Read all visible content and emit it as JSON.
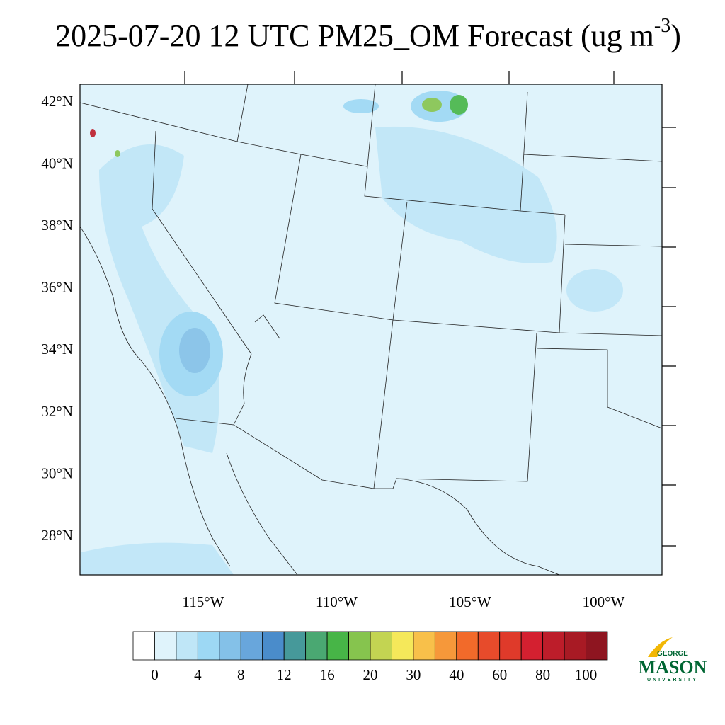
{
  "title": {
    "main": "2025-07-20 12 UTC PM25_OM Forecast (ug m",
    "superscript": "-3",
    "close": ")"
  },
  "map": {
    "lat_labels": [
      "42°N",
      "40°N",
      "38°N",
      "36°N",
      "34°N",
      "32°N",
      "30°N",
      "28°N"
    ],
    "lon_labels": [
      "115°W",
      "110°W",
      "105°W",
      "100°W"
    ]
  },
  "colorbar": {
    "colors": [
      "#ffffff",
      "#dff3fb",
      "#bfe6f7",
      "#9dd8f4",
      "#84c1e8",
      "#68a6dc",
      "#4a8ccb",
      "#46999a",
      "#4aa872",
      "#47b547",
      "#86c44e",
      "#c3d452",
      "#f5e85a",
      "#f8c04a",
      "#f6983a",
      "#f26a2a",
      "#e74b2b",
      "#df3a2a",
      "#d42030",
      "#bd1d2a",
      "#a81a24",
      "#8e1520"
    ],
    "labels": [
      "0",
      "4",
      "8",
      "12",
      "16",
      "20",
      "30",
      "40",
      "60",
      "80",
      "100"
    ]
  },
  "logo": {
    "top": "GEORGE",
    "main": "MASON",
    "bottom": "UNIVERSITY"
  }
}
